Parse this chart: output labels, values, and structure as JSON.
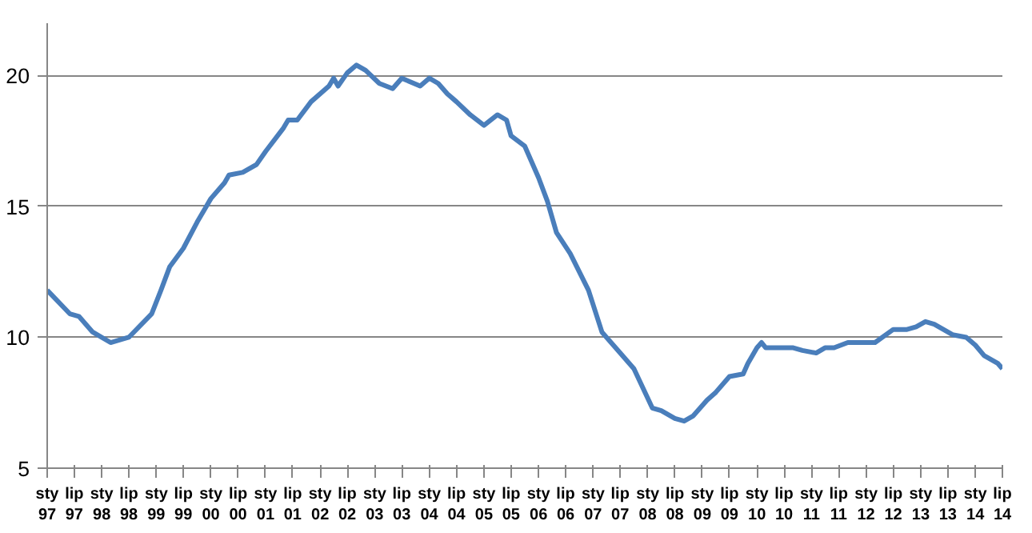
{
  "chart_data": {
    "type": "line",
    "x": [
      "1997-01",
      "1997-06",
      "1997-08",
      "1997-11",
      "1998-03",
      "1998-07",
      "1998-12",
      "1999-02",
      "1999-04",
      "1999-07",
      "1999-10",
      "2000-01",
      "2000-04",
      "2000-05",
      "2000-08",
      "2000-11",
      "2001-01",
      "2001-05",
      "2001-06",
      "2001-08",
      "2001-11",
      "2002-03",
      "2002-04",
      "2002-05",
      "2002-07",
      "2002-09",
      "2002-11",
      "2003-02",
      "2003-05",
      "2003-07",
      "2003-11",
      "2004-01",
      "2004-03",
      "2004-05",
      "2004-07",
      "2004-10",
      "2005-01",
      "2005-04",
      "2005-06",
      "2005-07",
      "2005-10",
      "2006-01",
      "2006-03",
      "2006-05",
      "2006-08",
      "2006-12",
      "2007-03",
      "2007-05",
      "2007-07",
      "2007-10",
      "2008-02",
      "2008-04",
      "2008-07",
      "2008-09",
      "2008-11",
      "2009-02",
      "2009-04",
      "2009-07",
      "2009-10",
      "2009-11",
      "2010-01",
      "2010-02",
      "2010-03",
      "2010-09",
      "2010-11",
      "2011-02",
      "2011-04",
      "2011-06",
      "2011-09",
      "2012-03",
      "2012-07",
      "2012-10",
      "2012-12",
      "2013-02",
      "2013-04",
      "2013-06",
      "2013-08",
      "2013-11",
      "2014-01",
      "2014-03",
      "2014-06",
      "2014-07"
    ],
    "series": [
      {
        "color": "#4a7ebb",
        "values": [
          11.8,
          10.9,
          10.8,
          10.2,
          9.8,
          10.0,
          10.9,
          11.8,
          12.7,
          13.4,
          14.4,
          15.3,
          15.9,
          16.2,
          16.3,
          16.6,
          17.1,
          18.0,
          18.3,
          18.3,
          19.0,
          19.6,
          19.9,
          19.6,
          20.1,
          20.4,
          20.2,
          19.7,
          19.5,
          19.9,
          19.6,
          19.9,
          19.7,
          19.3,
          19.0,
          18.5,
          18.1,
          18.5,
          18.3,
          17.7,
          17.3,
          16.1,
          15.2,
          14.0,
          13.2,
          11.8,
          10.2,
          9.8,
          9.4,
          8.8,
          7.3,
          7.2,
          6.9,
          6.8,
          7.0,
          7.6,
          7.9,
          8.5,
          8.6,
          9.0,
          9.6,
          9.8,
          9.6,
          9.6,
          9.5,
          9.4,
          9.6,
          9.6,
          9.8,
          9.8,
          10.3,
          10.3,
          10.4,
          10.6,
          10.5,
          10.3,
          10.1,
          10.0,
          9.7,
          9.3,
          9.0,
          8.8
        ]
      }
    ],
    "xlim": [
      "1997-01",
      "2014-07"
    ],
    "xticks": [
      {
        "value": "1997-01",
        "label": "sty\n97"
      },
      {
        "value": "1997-07",
        "label": "lip\n97"
      },
      {
        "value": "1998-01",
        "label": "sty\n98"
      },
      {
        "value": "1998-07",
        "label": "lip\n98"
      },
      {
        "value": "1999-01",
        "label": "sty\n99"
      },
      {
        "value": "1999-07",
        "label": "lip\n99"
      },
      {
        "value": "2000-01",
        "label": "sty\n00"
      },
      {
        "value": "2000-07",
        "label": "lip\n00"
      },
      {
        "value": "2001-01",
        "label": "sty\n01"
      },
      {
        "value": "2001-07",
        "label": "lip\n01"
      },
      {
        "value": "2002-01",
        "label": "sty\n02"
      },
      {
        "value": "2002-07",
        "label": "lip\n02"
      },
      {
        "value": "2003-01",
        "label": "sty\n03"
      },
      {
        "value": "2003-07",
        "label": "lip\n03"
      },
      {
        "value": "2004-01",
        "label": "sty\n04"
      },
      {
        "value": "2004-07",
        "label": "lip\n04"
      },
      {
        "value": "2005-01",
        "label": "sty\n05"
      },
      {
        "value": "2005-07",
        "label": "lip\n05"
      },
      {
        "value": "2006-01",
        "label": "sty\n06"
      },
      {
        "value": "2006-07",
        "label": "lip\n06"
      },
      {
        "value": "2007-01",
        "label": "sty\n07"
      },
      {
        "value": "2007-07",
        "label": "lip\n07"
      },
      {
        "value": "2008-01",
        "label": "sty\n08"
      },
      {
        "value": "2008-07",
        "label": "lip\n08"
      },
      {
        "value": "2009-01",
        "label": "sty\n09"
      },
      {
        "value": "2009-07",
        "label": "lip\n09"
      },
      {
        "value": "2010-01",
        "label": "sty\n10"
      },
      {
        "value": "2010-07",
        "label": "lip\n10"
      },
      {
        "value": "2011-01",
        "label": "sty\n11"
      },
      {
        "value": "2011-07",
        "label": "lip\n11"
      },
      {
        "value": "2012-01",
        "label": "sty\n12"
      },
      {
        "value": "2012-07",
        "label": "lip\n12"
      },
      {
        "value": "2013-01",
        "label": "sty\n13"
      },
      {
        "value": "2013-07",
        "label": "lip\n13"
      },
      {
        "value": "2014-01",
        "label": "sty\n14"
      },
      {
        "value": "2014-07",
        "label": "lip\n14"
      }
    ],
    "ylim": [
      5,
      22
    ],
    "yticks": [
      5,
      10,
      15,
      20
    ],
    "grid": "y",
    "marker": "none",
    "line_style": "solid"
  }
}
